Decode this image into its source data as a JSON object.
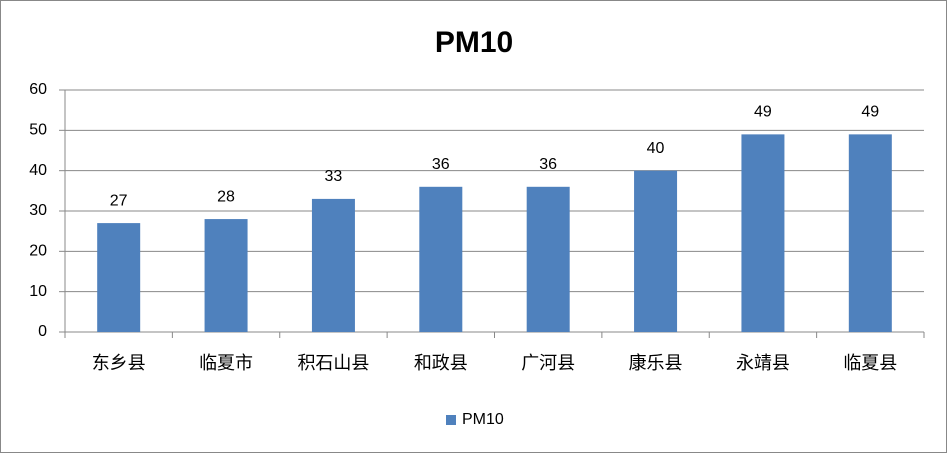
{
  "chart_data": {
    "type": "bar",
    "title": "PM10",
    "categories": [
      "东乡县",
      "临夏市",
      "积石山县",
      "和政县",
      "广河县",
      "康乐县",
      "永靖县",
      "临夏县"
    ],
    "series": [
      {
        "name": "PM10",
        "color": "#4f81bd",
        "values": [
          27,
          28,
          33,
          36,
          36,
          40,
          49,
          49
        ]
      }
    ],
    "ylim": [
      0,
      60
    ],
    "yticks": [
      0,
      10,
      20,
      30,
      40,
      50,
      60
    ],
    "grid": true,
    "legend": "bottom"
  }
}
